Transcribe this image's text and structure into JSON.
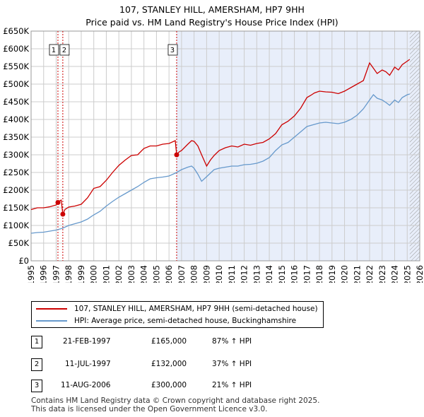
{
  "header": {
    "title_line1": "107, STANLEY HILL, AMERSHAM, HP7 9HH",
    "title_line2": "Price paid vs. HM Land Registry's House Price Index (HPI)"
  },
  "colors": {
    "red": "#cc0000",
    "blue": "#6699cc",
    "shade": "#e8eefa",
    "grid": "#cccccc",
    "vline": "#cc0000"
  },
  "chart_data": {
    "type": "line",
    "title": "Price paid vs. HM Land Registry's House Price Index (HPI)",
    "xlim": [
      1995,
      2026
    ],
    "ylim": [
      0,
      650000
    ],
    "x_ticks": [
      "1995",
      "1996",
      "1997",
      "1998",
      "1999",
      "2000",
      "2001",
      "2002",
      "2003",
      "2004",
      "2005",
      "2006",
      "2007",
      "2008",
      "2009",
      "2010",
      "2011",
      "2012",
      "2013",
      "2014",
      "2015",
      "2016",
      "2017",
      "2018",
      "2019",
      "2020",
      "2021",
      "2022",
      "2023",
      "2024",
      "2025",
      "2026"
    ],
    "y_ticks": [
      {
        "v": 0,
        "label": "£0"
      },
      {
        "v": 50000,
        "label": "£50K"
      },
      {
        "v": 100000,
        "label": "£100K"
      },
      {
        "v": 150000,
        "label": "£150K"
      },
      {
        "v": 200000,
        "label": "£200K"
      },
      {
        "v": 250000,
        "label": "£250K"
      },
      {
        "v": 300000,
        "label": "£300K"
      },
      {
        "v": 350000,
        "label": "£350K"
      },
      {
        "v": 400000,
        "label": "£400K"
      },
      {
        "v": 450000,
        "label": "£450K"
      },
      {
        "v": 500000,
        "label": "£500K"
      },
      {
        "v": 550000,
        "label": "£550K"
      },
      {
        "v": 600000,
        "label": "£600K"
      },
      {
        "v": 650000,
        "label": "£650K"
      }
    ],
    "series": [
      {
        "name": "107, STANLEY HILL, AMERSHAM, HP7 9HH (semi-detached house)",
        "color": "#cc0000",
        "x": [
          1995,
          1995.5,
          1996,
          1996.5,
          1997,
          1997.13,
          1997.2,
          1997.4,
          1997.53,
          1997.7,
          1998,
          1998.5,
          1999,
          1999.5,
          2000,
          2000.5,
          2001,
          2001.5,
          2002,
          2002.5,
          2003,
          2003.5,
          2004,
          2004.5,
          2005,
          2005.5,
          2006,
          2006.5,
          2006.61,
          2006.8,
          2007,
          2007.5,
          2007.8,
          2008,
          2008.3,
          2008.6,
          2009,
          2009.3,
          2009.6,
          2010,
          2010.5,
          2011,
          2011.5,
          2012,
          2012.5,
          2013,
          2013.5,
          2014,
          2014.5,
          2015,
          2015.5,
          2016,
          2016.5,
          2017,
          2017.3,
          2017.6,
          2018,
          2018.5,
          2019,
          2019.5,
          2020,
          2020.5,
          2021,
          2021.5,
          2022,
          2022.3,
          2022.6,
          2023,
          2023.3,
          2023.6,
          2024,
          2024.3,
          2024.6,
          2025,
          2025.2
        ],
        "y": [
          145000,
          150000,
          150000,
          153000,
          158000,
          165000,
          168000,
          172000,
          132000,
          145000,
          152000,
          155000,
          160000,
          178000,
          205000,
          210000,
          228000,
          250000,
          270000,
          285000,
          298000,
          300000,
          318000,
          325000,
          325000,
          330000,
          332000,
          340000,
          300000,
          308000,
          312000,
          330000,
          340000,
          338000,
          325000,
          300000,
          268000,
          285000,
          298000,
          312000,
          320000,
          325000,
          322000,
          330000,
          327000,
          332000,
          335000,
          345000,
          360000,
          385000,
          395000,
          410000,
          432000,
          462000,
          468000,
          475000,
          480000,
          478000,
          477000,
          473000,
          480000,
          490000,
          500000,
          510000,
          560000,
          545000,
          530000,
          540000,
          535000,
          525000,
          548000,
          540000,
          555000,
          565000,
          570000
        ]
      },
      {
        "name": "HPI: Average price, semi-detached house, Buckinghamshire",
        "color": "#6699cc",
        "x": [
          1995,
          1995.5,
          1996,
          1996.5,
          1997,
          1997.5,
          1998,
          1998.5,
          1999,
          1999.5,
          2000,
          2000.5,
          2001,
          2001.5,
          2002,
          2002.5,
          2003,
          2003.5,
          2004,
          2004.5,
          2005,
          2005.5,
          2006,
          2006.5,
          2007,
          2007.5,
          2007.8,
          2008,
          2008.3,
          2008.6,
          2009,
          2009.3,
          2009.6,
          2010,
          2010.5,
          2011,
          2011.5,
          2012,
          2012.5,
          2013,
          2013.5,
          2014,
          2014.5,
          2015,
          2015.5,
          2016,
          2016.5,
          2017,
          2017.5,
          2018,
          2018.5,
          2019,
          2019.5,
          2020,
          2020.5,
          2021,
          2021.5,
          2022,
          2022.3,
          2022.6,
          2023,
          2023.3,
          2023.6,
          2024,
          2024.3,
          2024.6,
          2025,
          2025.2
        ],
        "y": [
          78000,
          80000,
          81000,
          84000,
          87000,
          92000,
          100000,
          105000,
          110000,
          118000,
          130000,
          140000,
          155000,
          168000,
          180000,
          190000,
          200000,
          210000,
          222000,
          232000,
          235000,
          237000,
          240000,
          248000,
          258000,
          265000,
          268000,
          262000,
          245000,
          225000,
          238000,
          248000,
          258000,
          262000,
          265000,
          268000,
          268000,
          272000,
          273000,
          276000,
          282000,
          292000,
          312000,
          328000,
          335000,
          350000,
          365000,
          380000,
          385000,
          390000,
          392000,
          390000,
          388000,
          392000,
          400000,
          412000,
          430000,
          455000,
          470000,
          460000,
          455000,
          448000,
          440000,
          455000,
          448000,
          462000,
          470000,
          472000
        ]
      }
    ],
    "shaded_region": [
      2006.61,
      2026
    ],
    "hatch_region": [
      2025.2,
      2026
    ],
    "sales": [
      {
        "num": "1",
        "date": "21-FEB-1997",
        "x": 1997.14,
        "price": 165000,
        "price_label": "£165,000",
        "hpi": "87% ↑ HPI"
      },
      {
        "num": "2",
        "date": "11-JUL-1997",
        "x": 1997.53,
        "price": 132000,
        "price_label": "£132,000",
        "hpi": "37% ↑ HPI"
      },
      {
        "num": "3",
        "date": "11-AUG-2006",
        "x": 2006.61,
        "price": 300000,
        "price_label": "£300,000",
        "hpi": "21% ↑ HPI"
      }
    ]
  },
  "legend": {
    "red_label": "107, STANLEY HILL, AMERSHAM, HP7 9HH (semi-detached house)",
    "blue_label": "HPI: Average price, semi-detached house, Buckinghamshire"
  },
  "footer": {
    "line1": "Contains HM Land Registry data © Crown copyright and database right 2025.",
    "line2": "This data is licensed under the Open Government Licence v3.0."
  }
}
